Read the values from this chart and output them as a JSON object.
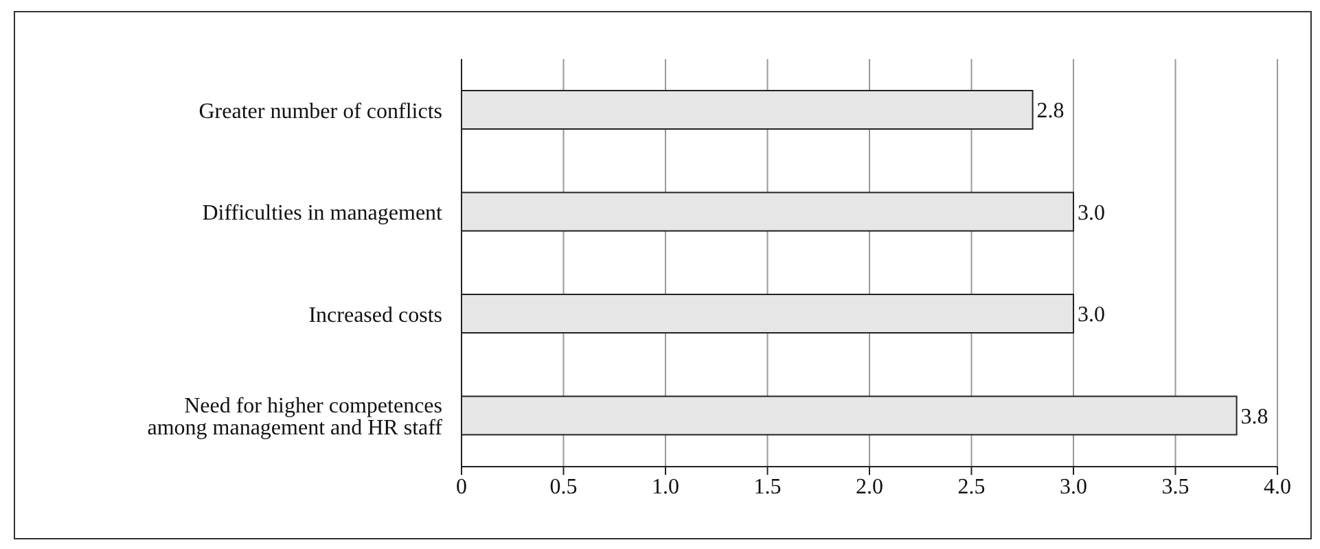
{
  "chart_data": {
    "type": "bar",
    "orientation": "horizontal",
    "categories": [
      "Greater number of conflicts",
      "Difficulties in management",
      "Increased costs",
      "Need for higher competences among management and HR staff"
    ],
    "values": [
      2.8,
      3.0,
      3.0,
      3.8
    ],
    "value_labels": [
      "2.8",
      "3.0",
      "3.0",
      "3.8"
    ],
    "color": "#e6e6e6",
    "xlim": [
      0,
      4
    ],
    "xticks": [
      0,
      {
        "value": 0.5,
        "label": "0.5"
      },
      {
        "value": 1,
        "label": "1.0"
      },
      {
        "value": 1.5,
        "label": "1.5"
      },
      {
        "value": 2,
        "label": "2.0"
      },
      {
        "value": 2.5,
        "label": "2.5"
      },
      {
        "value": 3,
        "label": "3.0"
      },
      {
        "value": 3.5,
        "label": "3.5"
      },
      {
        "value": 4,
        "label": "4.0"
      }
    ],
    "grid": "x",
    "legend": false
  }
}
